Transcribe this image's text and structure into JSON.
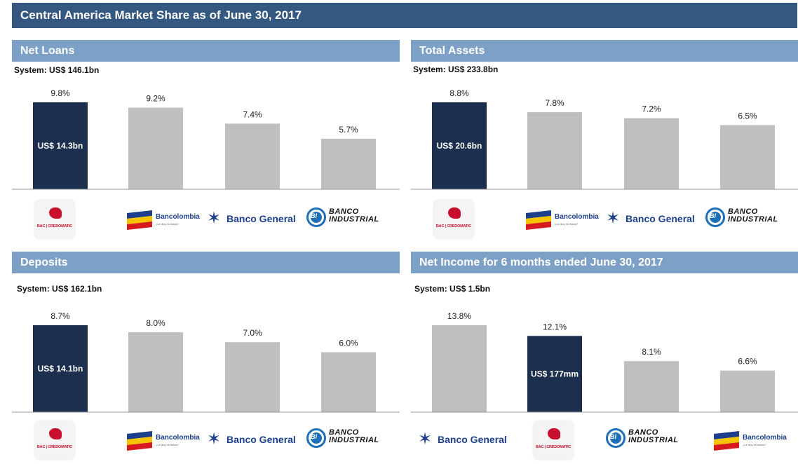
{
  "title": "Central America Market Share as of June 30, 2017",
  "colors": {
    "highlight": "#1c2f4f",
    "other": "#bfbfbf",
    "header_dark": "#34587f",
    "header_light": "#7da0c6"
  },
  "logos": {
    "bac": {
      "text": "BAC | CREDOMATIC"
    },
    "bancolombia": {
      "text": "Bancolombia",
      "tagline": "¿Le doy mi mano?"
    },
    "banco_general": {
      "text": "Banco General"
    },
    "banco_industrial": {
      "line1": "BANCO",
      "line2": "INDUSTRIAL",
      "mark": "BI"
    }
  },
  "panels": [
    {
      "title": "Net Loans",
      "system": "System: US$ 146.1bn"
    },
    {
      "title": "Total Assets",
      "system": "System: US$ 233.8bn"
    },
    {
      "title": "Deposits",
      "system": "System: US$ 162.1bn"
    },
    {
      "title": "Net Income for 6 months ended June 30, 2017",
      "system": "System: US$ 1.5bn"
    }
  ],
  "chart_data": [
    {
      "type": "bar",
      "title": "Net Loans",
      "categories": [
        "BAC | CREDOMATIC",
        "Bancolombia",
        "Banco General",
        "Banco Industrial"
      ],
      "values": [
        9.8,
        9.2,
        7.4,
        5.7
      ],
      "value_labels": [
        "9.8%",
        "9.2%",
        "7.4%",
        "5.7%"
      ],
      "highlight_index": 0,
      "inner_label": "US$ 14.3bn",
      "ylim": [
        0,
        9.8
      ]
    },
    {
      "type": "bar",
      "title": "Total Assets",
      "categories": [
        "BAC | CREDOMATIC",
        "Bancolombia",
        "Banco General",
        "Banco Industrial"
      ],
      "values": [
        8.8,
        7.8,
        7.2,
        6.5
      ],
      "value_labels": [
        "8.8%",
        "7.8%",
        "7.2%",
        "6.5%"
      ],
      "highlight_index": 0,
      "inner_label": "US$ 20.6bn",
      "ylim": [
        0,
        8.8
      ]
    },
    {
      "type": "bar",
      "title": "Deposits",
      "categories": [
        "BAC | CREDOMATIC",
        "Bancolombia",
        "Banco General",
        "Banco Industrial"
      ],
      "values": [
        8.7,
        8.0,
        7.0,
        6.0
      ],
      "value_labels": [
        "8.7%",
        "8.0%",
        "7.0%",
        "6.0%"
      ],
      "highlight_index": 0,
      "inner_label": "US$ 14.1bn",
      "ylim": [
        0,
        8.7
      ]
    },
    {
      "type": "bar",
      "title": "Net Income for 6 months ended June 30, 2017",
      "categories": [
        "Banco General",
        "BAC | CREDOMATIC",
        "Banco Industrial",
        "Bancolombia"
      ],
      "values": [
        13.8,
        12.1,
        8.1,
        6.6
      ],
      "value_labels": [
        "13.8%",
        "12.1%",
        "8.1%",
        "6.6%"
      ],
      "highlight_index": 1,
      "inner_label": "US$ 177mm",
      "ylim": [
        0,
        13.8
      ]
    }
  ]
}
